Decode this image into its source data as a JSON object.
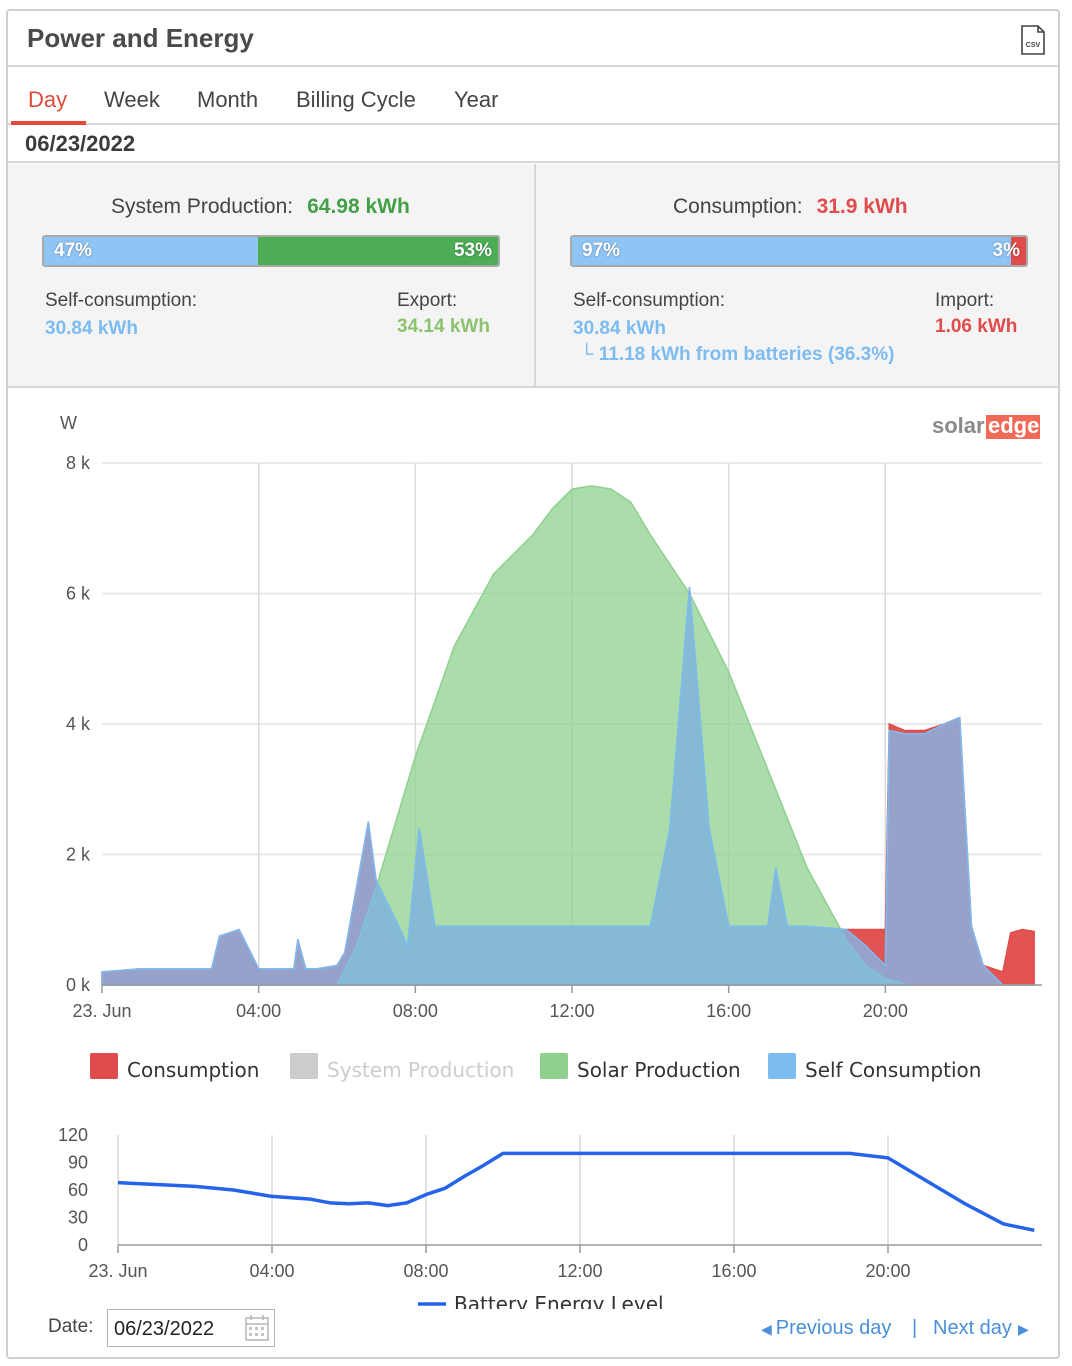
{
  "header": {
    "title": "Power and Energy",
    "csv_icon": "csv-file-icon"
  },
  "tabs": [
    {
      "label": "Day",
      "active": true
    },
    {
      "label": "Week"
    },
    {
      "label": "Month"
    },
    {
      "label": "Billing Cycle"
    },
    {
      "label": "Year"
    }
  ],
  "current_date": "06/23/2022",
  "production": {
    "title": "System Production:",
    "value": "64.98 kWh",
    "self_pct": "47%",
    "export_pct": "53%",
    "self_label": "Self-consumption:",
    "self_value": "30.84 kWh",
    "export_label": "Export:",
    "export_value": "34.14 kWh"
  },
  "consumption": {
    "title": "Consumption:",
    "value": "31.9 kWh",
    "self_pct": "97%",
    "import_pct": "3%",
    "self_label": "Self-consumption:",
    "self_value": "30.84 kWh",
    "battery_note": "11.18 kWh from batteries (36.3%)",
    "import_label": "Import:",
    "import_value": "1.06 kWh"
  },
  "brand": {
    "part1": "solar",
    "part2": "edge"
  },
  "colors": {
    "consumption": "#e04b4b",
    "system_production": "#cccccc",
    "solar_production": "#8fd08f",
    "self_consumption": "#7cbcf0",
    "battery": "#2563eb",
    "accent": "#e04b3a"
  },
  "chart_data": [
    {
      "type": "area",
      "ylabel": "W",
      "ylim": [
        0,
        8000
      ],
      "y_ticks": [
        "0 k",
        "2 k",
        "4 k",
        "6 k",
        "8 k"
      ],
      "x_ticks": [
        "23. Jun",
        "04:00",
        "08:00",
        "12:00",
        "16:00",
        "20:00"
      ],
      "x_unit": "hours",
      "xlim": [
        0,
        24
      ],
      "grid": true,
      "legend_position": "bottom",
      "series": [
        {
          "name": "Consumption",
          "x": [
            0,
            1,
            2,
            2.8,
            3,
            3.5,
            4,
            4.5,
            4.9,
            5,
            5.2,
            5.5,
            6,
            6.2,
            6.5,
            6.8,
            7,
            7.5,
            7.8,
            8.1,
            8.5,
            9,
            10,
            11,
            12,
            13,
            14,
            14.5,
            15,
            15.5,
            16,
            17,
            17.2,
            17.5,
            18,
            19,
            19.5,
            20,
            20.1,
            20.5,
            21,
            21.5,
            21.9,
            22.2,
            22.5,
            23,
            23.2,
            23.5,
            23.8
          ],
          "values": [
            200,
            250,
            250,
            250,
            750,
            850,
            250,
            250,
            250,
            700,
            250,
            250,
            300,
            500,
            1500,
            2500,
            1600,
            1000,
            600,
            2400,
            900,
            900,
            900,
            900,
            900,
            900,
            900,
            2400,
            6100,
            2400,
            900,
            900,
            1800,
            900,
            900,
            850,
            850,
            850,
            4000,
            3900,
            3900,
            4000,
            4100,
            900,
            300,
            200,
            800,
            850,
            820
          ]
        },
        {
          "name": "System Production",
          "x": [],
          "values": []
        },
        {
          "name": "Solar Production",
          "x": [
            0,
            6,
            6.5,
            7,
            8,
            9,
            10,
            11,
            11.5,
            12,
            12.5,
            13,
            13.5,
            14,
            15,
            16,
            17,
            18,
            19,
            19.5,
            20,
            20.6
          ],
          "values": [
            0,
            0,
            600,
            1500,
            3500,
            5200,
            6300,
            6900,
            7300,
            7600,
            7650,
            7600,
            7400,
            6900,
            6000,
            4800,
            3300,
            1800,
            700,
            300,
            100,
            0
          ]
        },
        {
          "name": "Self Consumption",
          "x": [
            0,
            1,
            2,
            2.8,
            3,
            3.5,
            4,
            4.5,
            4.9,
            5,
            5.2,
            5.5,
            6,
            6.2,
            6.5,
            6.8,
            7,
            7.5,
            7.8,
            8.1,
            8.5,
            9,
            10,
            11,
            12,
            13,
            14,
            14.5,
            15,
            15.5,
            16,
            17,
            17.2,
            17.5,
            18,
            19,
            19.5,
            20,
            20.1,
            20.5,
            21,
            21.5,
            21.9,
            22.2,
            22.5,
            23,
            23.2,
            23.5,
            23.8
          ],
          "values": [
            200,
            250,
            250,
            250,
            750,
            850,
            250,
            250,
            250,
            700,
            250,
            250,
            300,
            500,
            1500,
            2500,
            1600,
            1000,
            600,
            2400,
            900,
            900,
            900,
            900,
            900,
            900,
            900,
            2400,
            6100,
            2400,
            900,
            900,
            1800,
            900,
            900,
            850,
            600,
            300,
            3900,
            3850,
            3850,
            4000,
            4100,
            900,
            300,
            0,
            0,
            0,
            0
          ]
        }
      ]
    },
    {
      "type": "line",
      "ylim": [
        0,
        120
      ],
      "y_ticks": [
        "0",
        "30",
        "60",
        "90",
        "120"
      ],
      "x_ticks": [
        "23. Jun",
        "04:00",
        "08:00",
        "12:00",
        "16:00",
        "20:00"
      ],
      "x_unit": "hours",
      "xlim": [
        0,
        24
      ],
      "grid": true,
      "legend_position": "bottom",
      "series": [
        {
          "name": "Battery Energy Level",
          "x": [
            0,
            1,
            2,
            3,
            4,
            5,
            5.5,
            6,
            6.5,
            7,
            7.5,
            8,
            8.5,
            9,
            9.5,
            10,
            11,
            12,
            13,
            14,
            15,
            16,
            17,
            18,
            19,
            20,
            21,
            22,
            23,
            23.8
          ],
          "values": [
            68,
            66,
            64,
            60,
            53,
            50,
            46,
            45,
            46,
            43,
            46,
            55,
            62,
            75,
            87,
            100,
            100,
            100,
            100,
            100,
            100,
            100,
            100,
            100,
            100,
            95,
            70,
            45,
            23,
            16
          ]
        }
      ]
    }
  ],
  "legend": {
    "items": [
      {
        "label": "Consumption",
        "color": "#e04b4b",
        "disabled": false
      },
      {
        "label": "System Production",
        "color": "#cccccc",
        "disabled": true
      },
      {
        "label": "Solar Production",
        "color": "#8fd08f",
        "disabled": false
      },
      {
        "label": "Self Consumption",
        "color": "#7cbcf0",
        "disabled": false
      }
    ],
    "battery": "Battery Energy Level"
  },
  "footer": {
    "date_label": "Date:",
    "date_value": "06/23/2022",
    "prev": "Previous day",
    "separator": "|",
    "next": "Next day"
  }
}
